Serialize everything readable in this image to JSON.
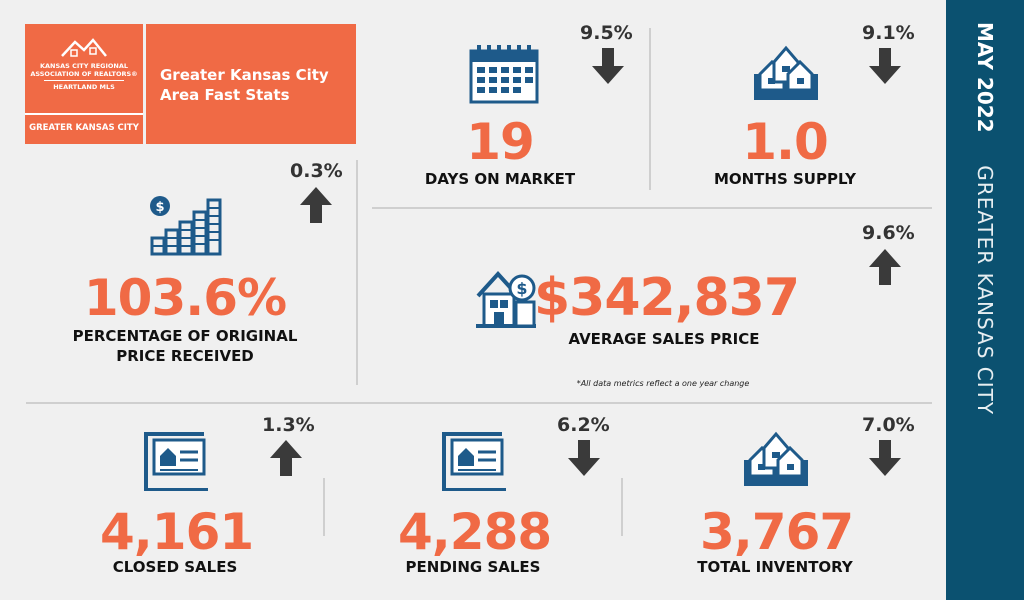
{
  "header": {
    "logo_line1": "KANSAS CITY REGIONAL",
    "logo_line2": "ASSOCIATION OF REALTORS®",
    "logo_line3": "HEARTLAND MLS",
    "logo_region": "GREATER KANSAS CITY",
    "title_line1": "Greater Kansas City",
    "title_line2": "Area Fast Stats"
  },
  "sidebar": {
    "date": "MAY 2022",
    "region": "GREATER KANSAS CITY"
  },
  "stats": {
    "days_on_market": {
      "value": "19",
      "label": "DAYS ON MARKET",
      "change": "9.5%",
      "direction": "down",
      "icon": "calendar-icon"
    },
    "months_supply": {
      "value": "1.0",
      "label": "MONTHS SUPPLY",
      "change": "9.1%",
      "direction": "down",
      "icon": "houses-icon"
    },
    "pct_original": {
      "value": "103.6%",
      "label_line1": "PERCENTAGE OF ORIGINAL",
      "label_line2": "PRICE RECEIVED",
      "change": "0.3%",
      "direction": "up",
      "icon": "coin-stacks-icon"
    },
    "avg_price": {
      "value": "$342,837",
      "label": "AVERAGE SALES PRICE",
      "change": "9.6%",
      "direction": "up",
      "icon": "house-price-icon"
    },
    "closed_sales": {
      "value": "4,161",
      "label": "CLOSED SALES",
      "change": "1.3%",
      "direction": "up",
      "icon": "sign-icon"
    },
    "pending_sales": {
      "value": "4,288",
      "label": "PENDING SALES",
      "change": "6.2%",
      "direction": "down",
      "icon": "sign-icon"
    },
    "total_inventory": {
      "value": "3,767",
      "label": "TOTAL INVENTORY",
      "change": "7.0%",
      "direction": "down",
      "icon": "houses-icon"
    }
  },
  "footnote": "*All data metrics reflect a one year change",
  "colors": {
    "accent": "#f06a45",
    "navy": "#0b5170",
    "icon_blue": "#1e5a8a",
    "arrow": "#333333"
  }
}
